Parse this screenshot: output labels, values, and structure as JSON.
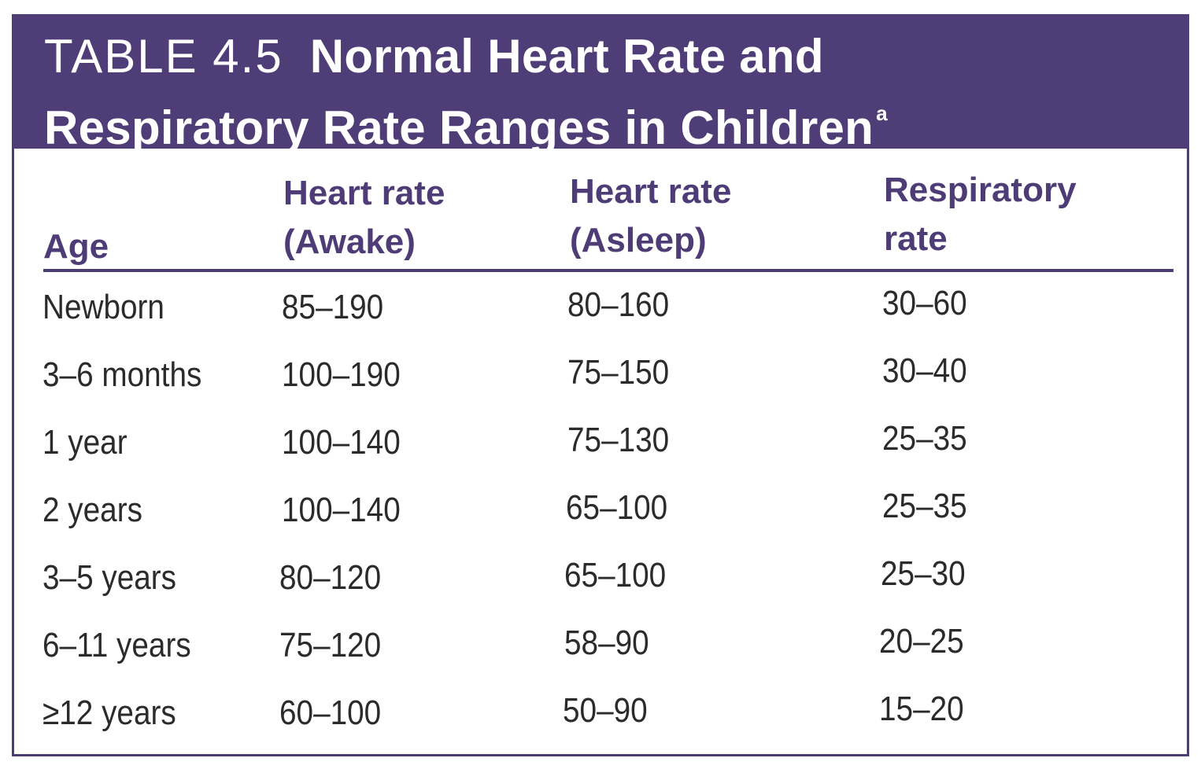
{
  "table": {
    "label": "TABLE 4.5",
    "title_line1": "Normal Heart Rate and",
    "title_line2": "Respiratory Rate Ranges in Children",
    "footnote_mark": "a",
    "columns": [
      {
        "line1": "",
        "line2": "Age"
      },
      {
        "line1": "Heart rate",
        "line2": "(Awake)"
      },
      {
        "line1": "Heart rate",
        "line2": "(Asleep)"
      },
      {
        "line1": "Respiratory",
        "line2": "rate"
      }
    ],
    "rows": [
      [
        "Newborn",
        "85–190",
        "80–160",
        "30–60"
      ],
      [
        "3–6 months",
        "100–190",
        "75–150",
        "30–40"
      ],
      [
        "1 year",
        "100–140",
        "75–130",
        "25–35"
      ],
      [
        "2 years",
        "100–140",
        "65–100",
        "25–35"
      ],
      [
        "3–5 years",
        "80–120",
        "65–100",
        "25–30"
      ],
      [
        "6–11 years",
        "75–120",
        "58–90",
        "20–25"
      ],
      [
        "≥12 years",
        "60–100",
        "50–90",
        "15–20"
      ]
    ]
  },
  "colors": {
    "header_background": "#4f3d78",
    "header_text": "#ffffff",
    "column_heading": "#4e3c77",
    "body_text": "#2b2b2b"
  }
}
